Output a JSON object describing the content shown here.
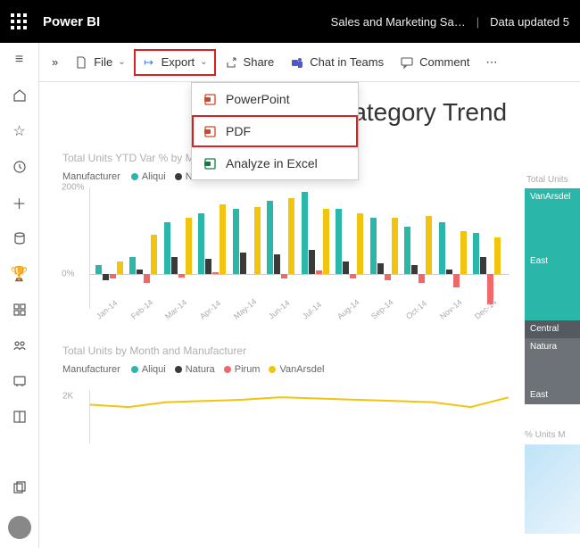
{
  "app": {
    "title": "Power BI",
    "breadcrumb": "Sales and Marketing Sa…",
    "updated": "Data updated 5"
  },
  "toolbar": {
    "file": "File",
    "export": "Export",
    "share": "Share",
    "chat": "Chat in Teams",
    "comment": "Comment"
  },
  "export_menu": {
    "items": [
      {
        "label": "PowerPoint",
        "icon_color": "#d04727",
        "hl": false
      },
      {
        "label": "PDF",
        "icon_color": "#d04727",
        "hl": true
      },
      {
        "label": "Analyze in Excel",
        "icon_color": "#107c41",
        "hl": false
      }
    ]
  },
  "page": {
    "title": "TD Category Trend"
  },
  "colors": {
    "aliqui": "#2ab7a9",
    "natura": "#3a3a3a",
    "pirum": "#f1686b",
    "vanarsdel": "#f2c40f",
    "panel_teal": "#2ab7a9",
    "panel_dark": "#555a60",
    "panel_gray": "#6d7278"
  },
  "chart1": {
    "title": "Total Units YTD Var % by Month and Manufacturer",
    "legend_label": "Manufacturer",
    "series": [
      "Aliqui",
      "Natura",
      "Pirum",
      "VanArsdel"
    ],
    "y_max": 200,
    "y_min": -80,
    "y_ticks": [
      200,
      0
    ],
    "categories": [
      "Jan-14",
      "Feb-14",
      "Mar-14",
      "Apr-14",
      "May-14",
      "Jun-14",
      "Jul-14",
      "Aug-14",
      "Sep-14",
      "Oct-14",
      "Nov-14",
      "Dec-14"
    ],
    "data": {
      "Aliqui": [
        20,
        40,
        120,
        140,
        150,
        170,
        190,
        150,
        130,
        110,
        120,
        95
      ],
      "Natura": [
        -15,
        10,
        40,
        35,
        50,
        45,
        55,
        30,
        25,
        20,
        10,
        40
      ],
      "Pirum": [
        -10,
        -20,
        -8,
        5,
        0,
        -10,
        8,
        -10,
        -15,
        -20,
        -30,
        -70
      ],
      "VanArsdel": [
        30,
        90,
        130,
        160,
        155,
        175,
        150,
        140,
        130,
        135,
        100,
        85
      ]
    }
  },
  "right_panel": {
    "title": "Total Units",
    "cells": [
      {
        "label": "VanArsdel",
        "bg": "panel_teal",
        "h": 72
      },
      {
        "label": "East",
        "bg": "panel_teal",
        "h": 20
      },
      {
        "label": "",
        "bg": "panel_teal",
        "h": 56
      },
      {
        "label": "Central",
        "bg": "panel_dark",
        "h": 20
      },
      {
        "label": "Natura",
        "bg": "panel_gray",
        "h": 28
      },
      {
        "label": "",
        "bg": "panel_gray",
        "h": 26
      },
      {
        "label": "East",
        "bg": "panel_gray",
        "h": 20
      }
    ]
  },
  "chart2": {
    "title": "Total Units by Month and Manufacturer",
    "legend_label": "Manufacturer",
    "series": [
      "Aliqui",
      "Natura",
      "Pirum",
      "VanArsdel"
    ],
    "y_tick": "2K",
    "vanarsdel_line": [
      1.6,
      1.5,
      1.7,
      1.75,
      1.8,
      1.9,
      1.85,
      1.8,
      1.75,
      1.7,
      1.5,
      1.9
    ],
    "y_max": 2.2
  },
  "right2": {
    "title": "% Units M"
  }
}
